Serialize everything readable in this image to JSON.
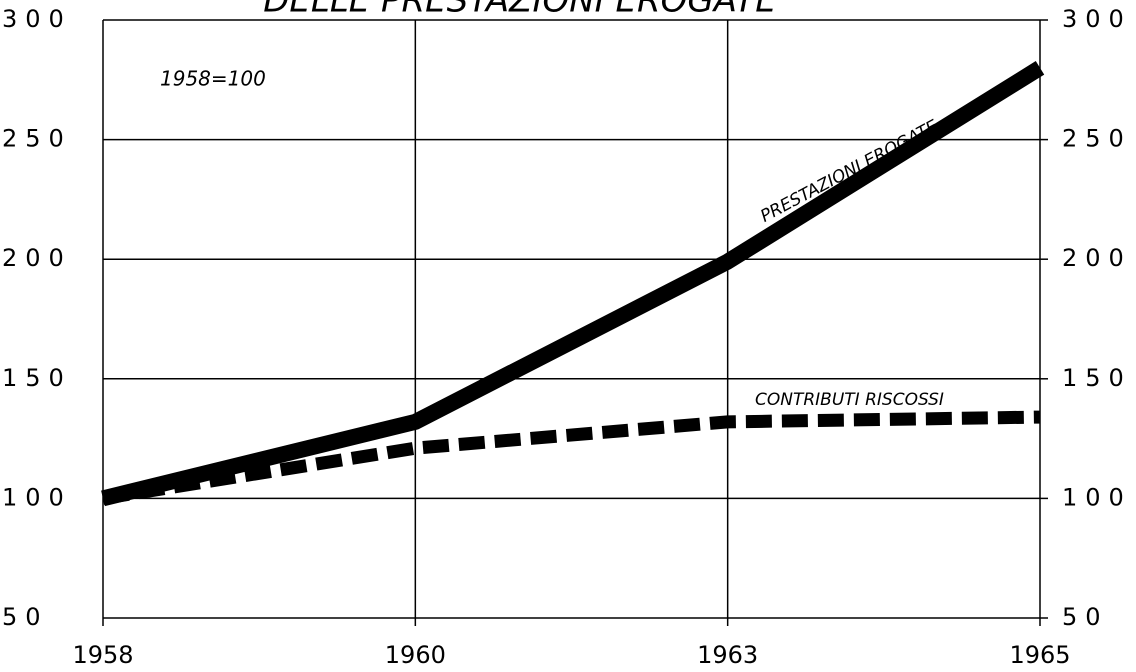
{
  "chart_data": {
    "type": "line",
    "title": "DELLE PRESTAZIONI EROGATE",
    "annotation": "1958=100",
    "categories": [
      "1958",
      "1960",
      "1963",
      "1965"
    ],
    "series": [
      {
        "name": "PRESTAZIONI EROGATE",
        "color": "#000000",
        "style": "solid",
        "values": [
          100,
          132,
          199,
          280
        ]
      },
      {
        "name": "CONTRIBUTI RISCOSSI",
        "color": "#000000",
        "style": "dashed",
        "values": [
          100,
          121,
          132,
          134
        ]
      }
    ],
    "ylim": [
      50,
      300
    ],
    "yticks": [
      50,
      100,
      150,
      200,
      250,
      300
    ],
    "y2lim": [
      50,
      300
    ],
    "y2ticks": [
      50,
      100,
      150,
      200,
      250,
      300
    ],
    "grid": true
  }
}
